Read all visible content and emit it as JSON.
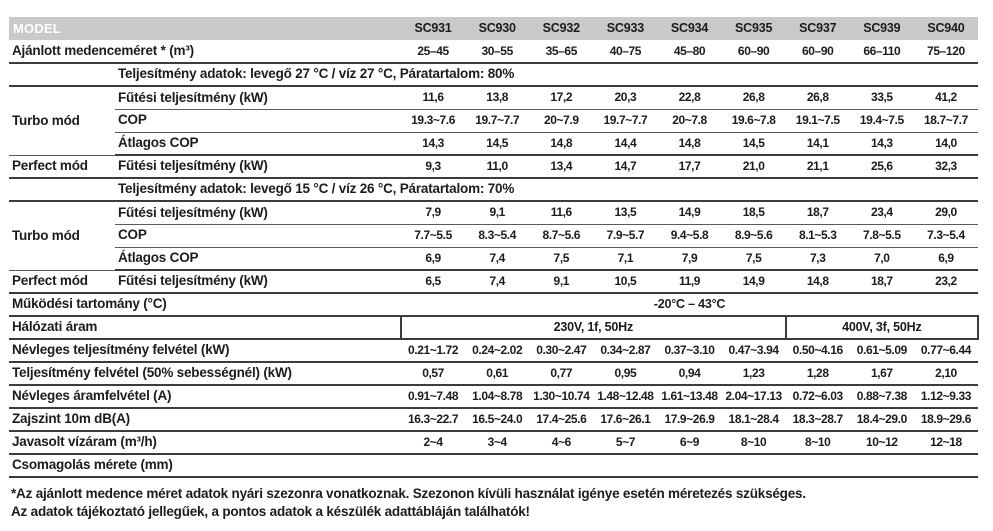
{
  "header": {
    "model_label": "MODEL",
    "models": [
      "SC931",
      "SC930",
      "SC932",
      "SC933",
      "SC934",
      "SC935",
      "SC937",
      "SC939",
      "SC940"
    ]
  },
  "pool_size": {
    "label": "Ajánlott medenceméret * (m³)",
    "values": [
      "25–45",
      "30–55",
      "35–65",
      "40–75",
      "45–80",
      "60–90",
      "60–90",
      "66–110",
      "75–120"
    ]
  },
  "section_80": {
    "title": "Teljesítmény adatok: levegő 27 °C / víz 27 °C, Páratartalom: 80%",
    "turbo_label": "Turbo mód",
    "perfect_label": "Perfect mód",
    "heating_label": "Fűtési teljesítmény (kW)",
    "cop_label": "COP",
    "avg_cop_label": "Átlagos COP",
    "perfect_heating_label": "Fűtési teljesítmény (kW)",
    "heating": [
      "11,6",
      "13,8",
      "17,2",
      "20,3",
      "22,8",
      "26,8",
      "26,8",
      "33,5",
      "41,2"
    ],
    "cop": [
      "19.3~7.6",
      "19.7~7.7",
      "20~7.9",
      "19.7~7.7",
      "20~7.8",
      "19.6~7.8",
      "19.1~7.5",
      "19.4~7.5",
      "18.7~7.7"
    ],
    "avg_cop": [
      "14,3",
      "14,5",
      "14,8",
      "14,4",
      "14,8",
      "14,5",
      "14,1",
      "14,3",
      "14,0"
    ],
    "perfect_heating": [
      "9,3",
      "11,0",
      "13,4",
      "14,7",
      "17,7",
      "21,0",
      "21,1",
      "25,6",
      "32,3"
    ]
  },
  "section_70": {
    "title": "Teljesítmény adatok: levegő 15 °C / víz 26 °C, Páratartalom: 70%",
    "turbo_label": "Turbo mód",
    "perfect_label": "Perfect mód",
    "heating_label": "Fűtési teljesítmény (kW)",
    "cop_label": "COP",
    "avg_cop_label": "Átlagos COP",
    "perfect_heating_label": "Fűtési teljesítmény (kW)",
    "heating": [
      "7,9",
      "9,1",
      "11,6",
      "13,5",
      "14,9",
      "18,5",
      "18,7",
      "23,4",
      "29,0"
    ],
    "cop": [
      "7.7~5.5",
      "8.3~5.4",
      "8.7~5.6",
      "7.9~5.7",
      "9.4~5.8",
      "8.9~5.6",
      "8.1~5.3",
      "7.8~5.5",
      "7.3~5.4"
    ],
    "avg_cop": [
      "6,9",
      "7,4",
      "7,5",
      "7,1",
      "7,9",
      "7,5",
      "7,3",
      "7,0",
      "6,9"
    ],
    "perfect_heating": [
      "6,5",
      "7,4",
      "9,1",
      "10,5",
      "11,9",
      "14,9",
      "14,8",
      "18,7",
      "23,2"
    ]
  },
  "operating_range": {
    "label": "Működési tartomány (°C)",
    "value": "-20°C – 43°C"
  },
  "mains_power": {
    "label": "Hálózati áram",
    "v230": "230V, 1f, 50Hz",
    "v400": "400V, 3f, 50Hz"
  },
  "rated_power": {
    "label": "Névleges teljesítmény felvétel (kW)",
    "values": [
      "0.21~1.72",
      "0.24~2.02",
      "0.30~2.47",
      "0.34~2.87",
      "0.37~3.10",
      "0.47~3.94",
      "0.50~4.16",
      "0.61~5.09",
      "0.77~6.44"
    ]
  },
  "power_50": {
    "label": "Teljesítmény felvétel (50% sebességnél) (kW)",
    "values": [
      "0,57",
      "0,61",
      "0,77",
      "0,95",
      "0,94",
      "1,23",
      "1,28",
      "1,67",
      "2,10"
    ]
  },
  "rated_current": {
    "label": "Névleges áramfelvétel (A)",
    "values": [
      "0.91~7.48",
      "1.04~8.78",
      "1.30~10.74",
      "1.48~12.48",
      "1.61~13.48",
      "2.04~17.13",
      "0.72~6.03",
      "0.88~7.38",
      "1.12~9.33"
    ]
  },
  "noise": {
    "label": "Zajszint 10m dB(A)",
    "values": [
      "16.3~22.7",
      "16.5~24.0",
      "17.4~25.6",
      "17.6~26.1",
      "17.9~26.9",
      "18.1~28.4",
      "18.3~28.7",
      "18.4~29.0",
      "18.9~29.6"
    ]
  },
  "water_flow": {
    "label": "Javasolt vízáram (m³/h)",
    "values": [
      "2~4",
      "3~4",
      "4~6",
      "5~7",
      "6~9",
      "8~10",
      "8~10",
      "10~12",
      "12~18"
    ]
  },
  "packaging": {
    "label": "Csomagolás mérete (mm)"
  },
  "footnotes": [
    "*Az ajánlott medence méret adatok nyári szezonra vonatkoznak. Szezonon kívüli használat igénye esetén méretezés szükséges.",
    "Az adatok tájékoztató jellegűek, a pontos adatok a készülék adattábláján találhatók!"
  ],
  "colors": {
    "header_bg": "#c9c9c9",
    "header_text": "#ffffff",
    "text": "#1c1c1c",
    "line_thick": "#3c3c3c",
    "line_thin": "#5a5a5a"
  }
}
